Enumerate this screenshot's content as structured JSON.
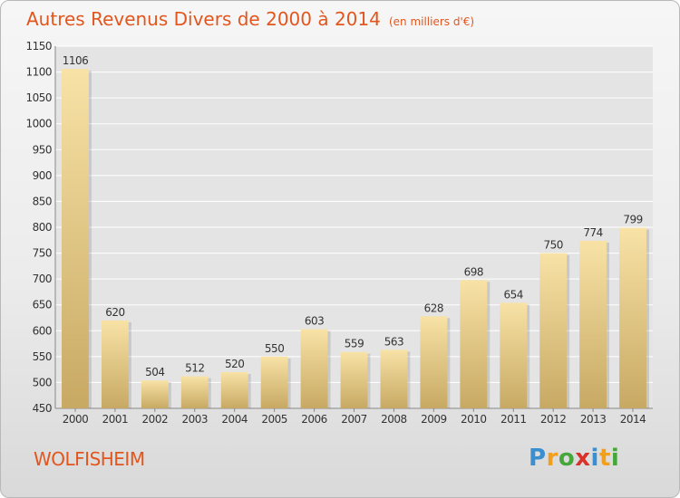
{
  "header": {
    "title": "Autres Revenus Divers de 2000 à 2014",
    "unit": "(en milliers d'€)"
  },
  "location": "WOLFISHEIM",
  "brand": "Proxiti",
  "colors": {
    "title": "#e2561e",
    "bar_top": "#f8e2a6",
    "bar_bottom": "#c7a963",
    "logo": [
      "#3a8fd0",
      "#f2a01c",
      "#46a83a",
      "#d8322a",
      "#3a8fd0",
      "#f2a01c",
      "#46a83a"
    ]
  },
  "chart_data": {
    "type": "bar",
    "title": "Autres Revenus Divers de 2000 à 2014",
    "subtitle": "(en milliers d'€)",
    "categories": [
      "2000",
      "2001",
      "2002",
      "2003",
      "2004",
      "2005",
      "2006",
      "2007",
      "2008",
      "2009",
      "2010",
      "2011",
      "2012",
      "2013",
      "2014"
    ],
    "values": [
      1106,
      620,
      504,
      512,
      520,
      550,
      603,
      559,
      563,
      628,
      698,
      654,
      750,
      774,
      799
    ],
    "ylim": [
      450,
      1150
    ],
    "yticks": [
      450,
      500,
      550,
      600,
      650,
      700,
      750,
      800,
      850,
      900,
      950,
      1000,
      1050,
      1100,
      1150
    ],
    "grid": true,
    "data_labels": true
  }
}
